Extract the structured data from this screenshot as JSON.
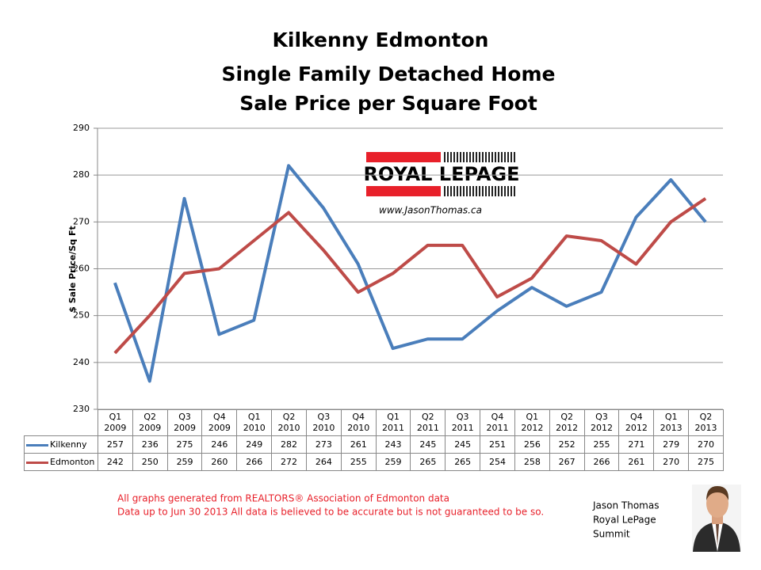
{
  "chart_data": {
    "type": "line",
    "title": [
      "Kilkenny Edmonton",
      "Single Family Detached Home",
      "Sale Price per Square Foot"
    ],
    "y_label": "$ Sale Price/Sq Ft",
    "categories": [
      "Q1 2009",
      "Q2 2009",
      "Q3 2009",
      "Q4 2009",
      "Q1 2010",
      "Q2 2010",
      "Q3 2010",
      "Q4 2010",
      "Q1 2011",
      "Q2 2011",
      "Q3 2011",
      "Q4 2011",
      "Q1 2012",
      "Q2 2012",
      "Q3 2012",
      "Q4 2012",
      "Q1 2013",
      "Q2 2013"
    ],
    "series": [
      {
        "name": "Kilkenny",
        "color": "#4a7ebb",
        "values": [
          257,
          236,
          275,
          246,
          249,
          282,
          273,
          261,
          243,
          245,
          245,
          251,
          256,
          252,
          255,
          271,
          279,
          270
        ]
      },
      {
        "name": "Edmonton",
        "color": "#be4b48",
        "values": [
          242,
          250,
          259,
          260,
          266,
          272,
          264,
          255,
          259,
          265,
          265,
          254,
          258,
          267,
          266,
          261,
          270,
          275
        ]
      }
    ],
    "ylim": [
      230,
      290
    ],
    "yticks": [
      230,
      240,
      250,
      260,
      270,
      280,
      290
    ],
    "grid": true
  },
  "logo": {
    "brand": "ROYAL LEPAGE",
    "url": "www.JasonThomas.ca"
  },
  "footer": {
    "notes": [
      "All graphs generated from REALTORS® Association of Edmonton data",
      "Data up to  Jun 30  2013  All data is believed to be accurate but is not guaranteed to be so."
    ],
    "author": [
      "Jason Thomas",
      "Royal LePage",
      "Summit"
    ]
  }
}
